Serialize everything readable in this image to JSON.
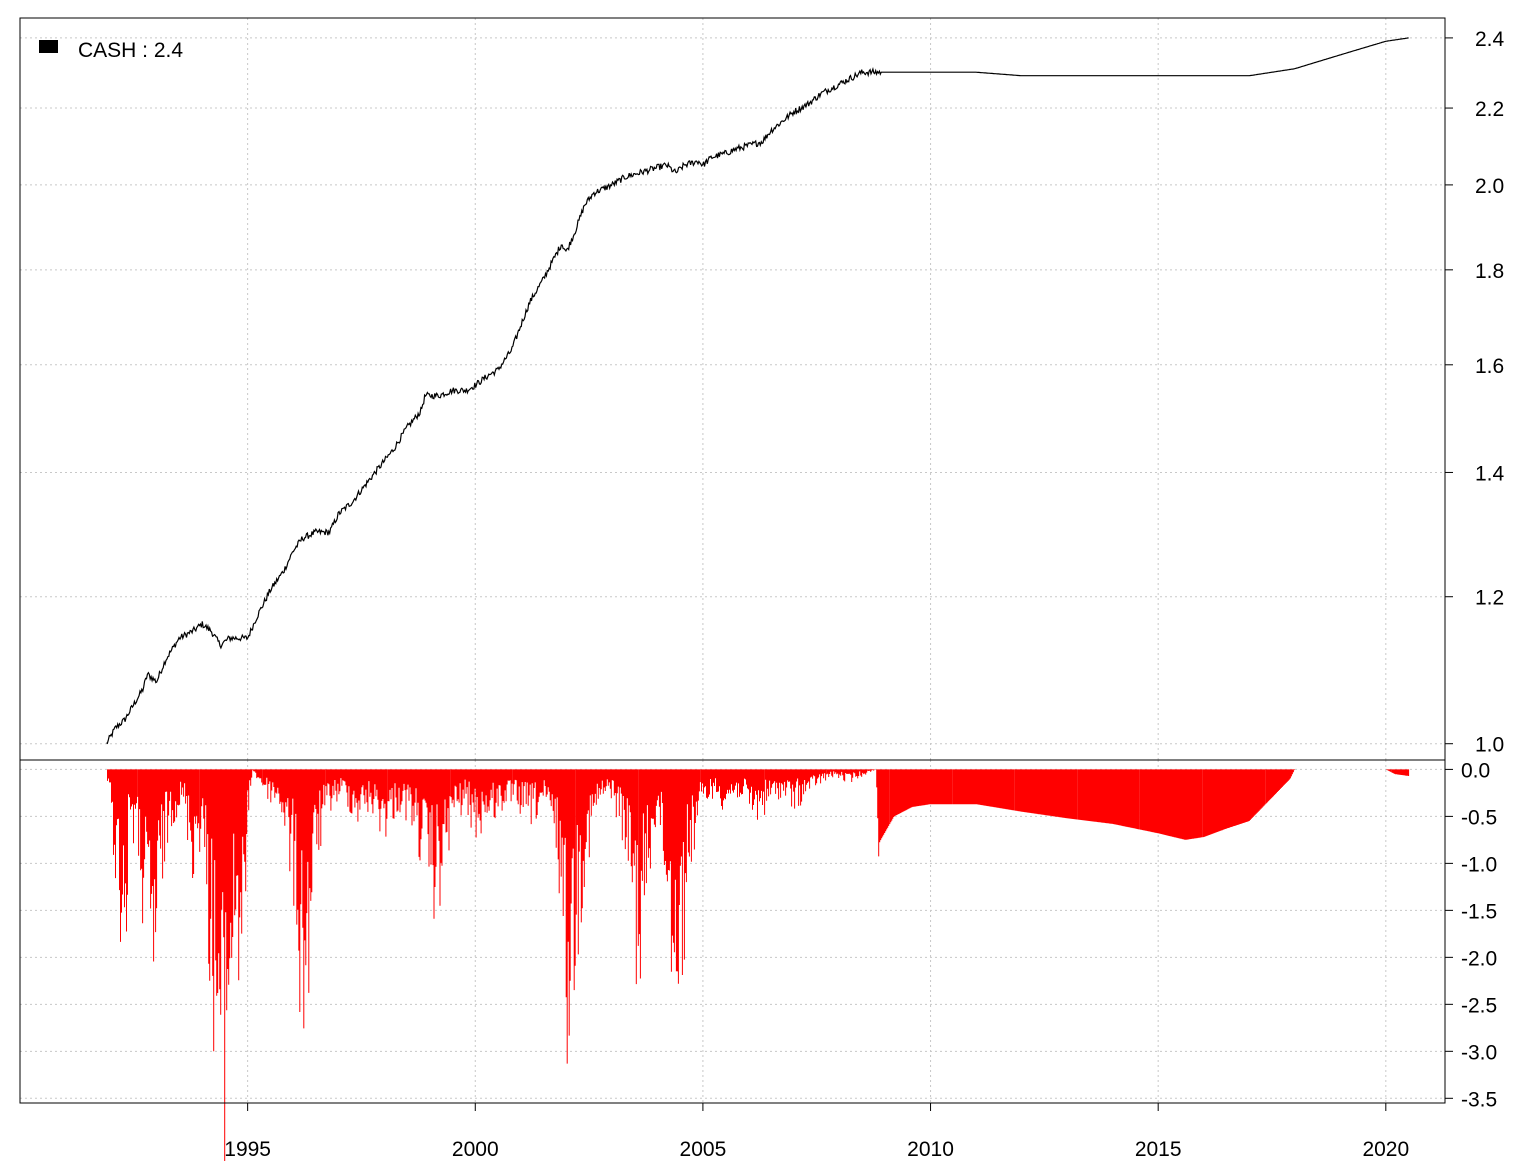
{
  "colors": {
    "equity": "#000000",
    "drawdown": "#ff0000",
    "grid": "#c8c8c8",
    "frame": "#000000",
    "background": "#ffffff"
  },
  "legend": {
    "label": "CASH : 2.4",
    "placement": "top-left",
    "swatch_color": "#000000"
  },
  "chart_data": [
    {
      "type": "line",
      "panel": "top",
      "y_scale": "log",
      "ylim": [
        0.98,
        2.46
      ],
      "yticks": [
        "1.0",
        "1.2",
        "1.4",
        "1.6",
        "1.8",
        "2.0",
        "2.2",
        "2.4"
      ],
      "ytick_values": [
        1.0,
        1.2,
        1.4,
        1.6,
        1.8,
        2.0,
        2.2,
        2.4
      ],
      "y_axis_side": "right",
      "grid": true,
      "series": [
        {
          "name": "CASH",
          "color": "#000000",
          "x": [
            1991.9,
            1992.1,
            1992.3,
            1992.5,
            1992.7,
            1992.8,
            1993.0,
            1993.2,
            1993.5,
            1993.8,
            1994.0,
            1994.2,
            1994.4,
            1994.6,
            1994.9,
            1995.0,
            1995.2,
            1995.5,
            1995.8,
            1996.0,
            1996.2,
            1996.5,
            1996.8,
            1997.0,
            1997.3,
            1997.6,
            1997.9,
            1998.2,
            1998.5,
            1998.8,
            1998.9,
            1999.2,
            1999.5,
            1999.8,
            2000.0,
            2000.3,
            2000.5,
            2000.8,
            2001.0,
            2001.2,
            2001.5,
            2001.7,
            2001.9,
            2002.0,
            2002.2,
            2002.4,
            2002.6,
            2002.8,
            2003.0,
            2003.3,
            2003.6,
            2003.9,
            2004.2,
            2004.4,
            2004.6,
            2004.9,
            2005.0,
            2005.2,
            2005.5,
            2005.7,
            2006.0,
            2006.3,
            2006.5,
            2006.8,
            2007.0,
            2007.3,
            2007.6,
            2007.9,
            2008.2,
            2008.5,
            2008.8,
            2009.0,
            2009.5,
            2010.0,
            2011.0,
            2012.0,
            2013.0,
            2014.0,
            2015.0,
            2016.0,
            2017.0,
            2017.5,
            2018.0,
            2018.5,
            2019.0,
            2019.5,
            2020.0,
            2020.5
          ],
          "y": [
            1.0,
            1.02,
            1.03,
            1.05,
            1.07,
            1.09,
            1.08,
            1.11,
            1.14,
            1.15,
            1.16,
            1.15,
            1.13,
            1.14,
            1.14,
            1.14,
            1.17,
            1.21,
            1.24,
            1.27,
            1.29,
            1.3,
            1.3,
            1.33,
            1.35,
            1.38,
            1.41,
            1.44,
            1.48,
            1.51,
            1.54,
            1.54,
            1.55,
            1.55,
            1.56,
            1.58,
            1.59,
            1.63,
            1.68,
            1.73,
            1.78,
            1.82,
            1.86,
            1.84,
            1.89,
            1.95,
            1.98,
            1.99,
            2.0,
            2.02,
            2.03,
            2.04,
            2.05,
            2.03,
            2.05,
            2.06,
            2.05,
            2.07,
            2.08,
            2.09,
            2.1,
            2.11,
            2.14,
            2.17,
            2.19,
            2.21,
            2.24,
            2.26,
            2.28,
            2.3,
            2.3,
            2.3,
            2.3,
            2.3,
            2.3,
            2.29,
            2.29,
            2.29,
            2.29,
            2.29,
            2.29,
            2.3,
            2.31,
            2.33,
            2.35,
            2.37,
            2.39,
            2.4
          ]
        }
      ]
    },
    {
      "type": "area",
      "panel": "bottom",
      "ylim": [
        -3.55,
        0.1
      ],
      "yticks": [
        "0.0",
        "-0.5",
        "-1.0",
        "-1.5",
        "-2.0",
        "-2.5",
        "-3.0",
        "-3.5"
      ],
      "ytick_values": [
        0.0,
        -0.5,
        -1.0,
        -1.5,
        -2.0,
        -2.5,
        -3.0,
        -3.5
      ],
      "y_axis_side": "right",
      "grid": true,
      "xlim": [
        1990.0,
        2021.3
      ],
      "xticks": [
        "1995",
        "2000",
        "2005",
        "2010",
        "2015",
        "2020"
      ],
      "xtick_values": [
        1995,
        2000,
        2005,
        2010,
        2015,
        2020
      ],
      "series": [
        {
          "color": "#ff0000",
          "x": [
            1991.9,
            1992.05,
            1992.2,
            1992.35,
            1992.4,
            1992.6,
            1992.8,
            1992.95,
            1993.1,
            1993.3,
            1993.6,
            1993.8,
            1994.0,
            1994.2,
            1994.35,
            1994.45,
            1994.6,
            1994.75,
            1994.9,
            1995.0,
            1995.1,
            1995.4,
            1995.7,
            1996.0,
            1996.15,
            1996.3,
            1996.5,
            1996.8,
            1997.1,
            1997.4,
            1997.7,
            1998.0,
            1998.3,
            1998.6,
            1998.9,
            1999.1,
            1999.3,
            1999.5,
            1999.8,
            2000.0,
            2000.3,
            2000.6,
            2000.9,
            2001.2,
            2001.5,
            2001.7,
            2001.9,
            2002.0,
            2002.2,
            2002.4,
            2002.7,
            2003.0,
            2003.3,
            2003.6,
            2003.8,
            2004.0,
            2004.2,
            2004.45,
            2004.7,
            2004.9,
            2005.2,
            2005.5,
            2005.8,
            2006.1,
            2006.4,
            2006.7,
            2007.0,
            2007.3,
            2007.6,
            2007.9,
            2008.2,
            2008.5,
            2008.8,
            2008.85,
            2009.2,
            2009.6,
            2010.0,
            2011.0,
            2012.0,
            2013.0,
            2014.0,
            2015.0,
            2015.6,
            2016.0,
            2016.5,
            2017.0,
            2017.3,
            2017.6,
            2017.9,
            2018.0,
            2018.5,
            2019.0,
            2019.5,
            2020.0,
            2020.2,
            2020.5
          ],
          "y": [
            0.0,
            -0.6,
            -1.2,
            -1.6,
            -0.3,
            -0.8,
            -1.5,
            -1.9,
            -0.9,
            -0.4,
            -0.3,
            -0.8,
            -0.5,
            -1.7,
            -2.6,
            -3.4,
            -2.1,
            -1.4,
            -1.8,
            -0.6,
            0.0,
            -0.2,
            -0.3,
            -0.9,
            -1.8,
            -2.0,
            -0.7,
            -0.3,
            -0.2,
            -0.4,
            -0.3,
            -0.5,
            -0.3,
            -0.4,
            -0.8,
            -1.1,
            -0.9,
            -0.4,
            -0.3,
            -0.5,
            -0.4,
            -0.3,
            -0.3,
            -0.4,
            -0.3,
            -0.5,
            -1.0,
            -2.2,
            -1.5,
            -0.8,
            -0.3,
            -0.2,
            -0.6,
            -1.7,
            -0.9,
            -0.3,
            -1.1,
            -2.0,
            -0.8,
            -0.4,
            -0.2,
            -0.3,
            -0.2,
            -0.4,
            -0.3,
            -0.2,
            -0.3,
            -0.2,
            -0.1,
            -0.05,
            -0.1,
            -0.05,
            0.0,
            -0.8,
            -0.5,
            -0.4,
            -0.37,
            -0.37,
            -0.45,
            -0.52,
            -0.58,
            -0.68,
            -0.75,
            -0.72,
            -0.63,
            -0.55,
            -0.4,
            -0.25,
            -0.1,
            0.0,
            0.0,
            0.0,
            0.0,
            0.0,
            -0.05,
            -0.07
          ]
        }
      ]
    }
  ]
}
